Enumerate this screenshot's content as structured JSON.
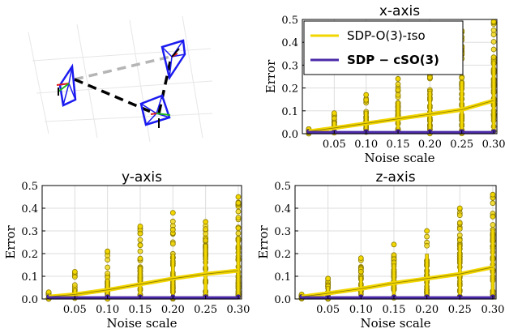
{
  "colors": {
    "iso": "#f2d600",
    "iso_dark": "#8a7a00",
    "csO3": "#4b2aa8",
    "grid": "#dddddd",
    "camera": "#1b1bf0"
  },
  "scene": {
    "cameras": 3
  },
  "legend": {
    "items": [
      {
        "label": "SDP-O(3)-ɪso",
        "series": "iso",
        "bold": false
      },
      {
        "label": "SDP − cSO(3)",
        "series": "csO3",
        "bold": true
      }
    ]
  },
  "chart_data": [
    {
      "id": "x",
      "type": "scatter",
      "title": "x-axis",
      "xlabel": "Noise scale",
      "ylabel": "Error",
      "xlim": [
        0.0,
        0.305
      ],
      "ylim": [
        0.0,
        0.5
      ],
      "xticks": [
        "0.05",
        "0.10",
        "0.15",
        "0.20",
        "0.25",
        "0.30"
      ],
      "yticks": [
        "0.0",
        "0.1",
        "0.2",
        "0.3",
        "0.4",
        "0.5"
      ],
      "grid": true,
      "legend_position": "top-left",
      "noise_levels": [
        0.01,
        0.05,
        0.1,
        0.15,
        0.2,
        0.25,
        0.3
      ],
      "series": [
        {
          "name": "SDP-O(3)-ɪso",
          "mean": [
            0.01,
            0.025,
            0.045,
            0.065,
            0.085,
            0.105,
            0.145
          ],
          "max": [
            0.02,
            0.09,
            0.17,
            0.24,
            0.29,
            0.45,
            0.49
          ]
        },
        {
          "name": "SDP − cSO(3)",
          "mean": [
            0.005,
            0.005,
            0.005,
            0.005,
            0.005,
            0.005,
            0.005
          ],
          "max": [
            0.01,
            0.01,
            0.01,
            0.01,
            0.01,
            0.01,
            0.01
          ]
        }
      ]
    },
    {
      "id": "y",
      "type": "scatter",
      "title": "y-axis",
      "xlabel": "Noise scale",
      "ylabel": "Error",
      "xlim": [
        0.0,
        0.305
      ],
      "ylim": [
        0.0,
        0.5
      ],
      "xticks": [
        "0.05",
        "0.10",
        "0.15",
        "0.20",
        "0.25",
        "0.30"
      ],
      "yticks": [
        "0.0",
        "0.1",
        "0.2",
        "0.3",
        "0.4",
        "0.5"
      ],
      "grid": true,
      "noise_levels": [
        0.01,
        0.05,
        0.1,
        0.15,
        0.2,
        0.25,
        0.3
      ],
      "series": [
        {
          "name": "SDP-O(3)-ɪso",
          "mean": [
            0.01,
            0.02,
            0.04,
            0.065,
            0.09,
            0.11,
            0.125
          ],
          "max": [
            0.03,
            0.12,
            0.21,
            0.32,
            0.38,
            0.34,
            0.45
          ]
        },
        {
          "name": "SDP − cSO(3)",
          "mean": [
            0.005,
            0.005,
            0.005,
            0.005,
            0.005,
            0.005,
            0.005
          ],
          "max": [
            0.01,
            0.01,
            0.01,
            0.01,
            0.01,
            0.01,
            0.01
          ]
        }
      ]
    },
    {
      "id": "z",
      "type": "scatter",
      "title": "z-axis",
      "xlabel": "Noise scale",
      "ylabel": "Error",
      "xlim": [
        0.0,
        0.305
      ],
      "ylim": [
        0.0,
        0.5
      ],
      "xticks": [
        "0.05",
        "0.10",
        "0.15",
        "0.20",
        "0.25",
        "0.30"
      ],
      "yticks": [
        "0.0",
        "0.1",
        "0.2",
        "0.3",
        "0.4",
        "0.5"
      ],
      "grid": true,
      "noise_levels": [
        0.01,
        0.05,
        0.1,
        0.15,
        0.2,
        0.25,
        0.3
      ],
      "series": [
        {
          "name": "SDP-O(3)-ɪso",
          "mean": [
            0.01,
            0.025,
            0.045,
            0.07,
            0.09,
            0.11,
            0.14
          ],
          "max": [
            0.02,
            0.09,
            0.18,
            0.24,
            0.3,
            0.4,
            0.46
          ]
        },
        {
          "name": "SDP − cSO(3)",
          "mean": [
            0.005,
            0.005,
            0.005,
            0.005,
            0.005,
            0.005,
            0.005
          ],
          "max": [
            0.01,
            0.01,
            0.01,
            0.01,
            0.01,
            0.01,
            0.01
          ]
        }
      ]
    }
  ]
}
